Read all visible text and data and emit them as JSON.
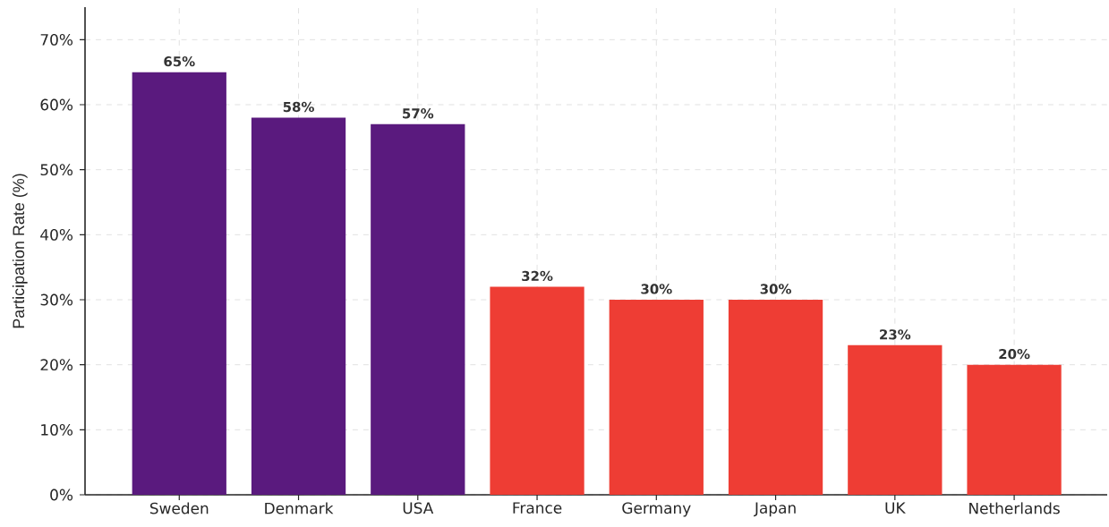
{
  "chart_data": {
    "type": "bar",
    "ylabel": "Participation Rate (%)",
    "categories": [
      "Sweden",
      "Denmark",
      "USA",
      "France",
      "Germany",
      "Japan",
      "UK",
      "Netherlands"
    ],
    "values": [
      65,
      58,
      57,
      32,
      30,
      30,
      23,
      20
    ],
    "value_labels": [
      "65%",
      "58%",
      "57%",
      "32%",
      "30%",
      "30%",
      "23%",
      "20%"
    ],
    "colors": [
      "#5a1a7e",
      "#5a1a7e",
      "#5a1a7e",
      "#ee3d34",
      "#ee3d34",
      "#ee3d34",
      "#ee3d34",
      "#ee3d34"
    ],
    "ylim": [
      0,
      75
    ],
    "yticks": [
      {
        "value": 0,
        "label": "0%"
      },
      {
        "value": 10,
        "label": "10%"
      },
      {
        "value": 20,
        "label": "20%"
      },
      {
        "value": 30,
        "label": "30%"
      },
      {
        "value": 40,
        "label": "40%"
      },
      {
        "value": 50,
        "label": "50%"
      },
      {
        "value": 60,
        "label": "60%"
      },
      {
        "value": 70,
        "label": "70%"
      }
    ],
    "grid": true
  }
}
